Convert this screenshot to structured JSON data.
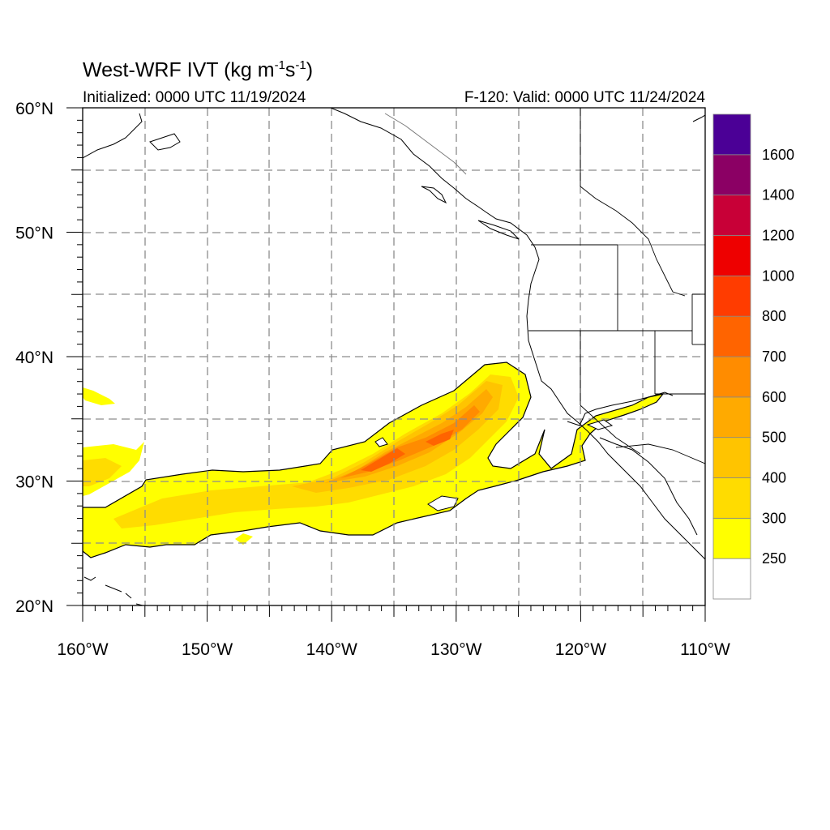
{
  "title": {
    "main": "West-WRF IVT (kg m",
    "exp1": "-1",
    "mid": "s",
    "exp2": "-1",
    "close": ")"
  },
  "subtitle_left": "Initialized: 0000 UTC 11/19/2024",
  "subtitle_right": "F-120: Valid: 0000 UTC 11/24/2024",
  "map": {
    "lon_range": [
      -160,
      -110
    ],
    "lat_range": [
      20,
      60
    ],
    "x_ticks": [
      {
        "value": -160,
        "label": "160°W"
      },
      {
        "value": -150,
        "label": "150°W"
      },
      {
        "value": -140,
        "label": "140°W"
      },
      {
        "value": -130,
        "label": "130°W"
      },
      {
        "value": -120,
        "label": "120°W"
      },
      {
        "value": -110,
        "label": "110°W"
      }
    ],
    "y_ticks": [
      {
        "value": 20,
        "label": "20°N"
      },
      {
        "value": 30,
        "label": "30°N"
      },
      {
        "value": 40,
        "label": "40°N"
      },
      {
        "value": 50,
        "label": "50°N"
      },
      {
        "value": 60,
        "label": "60°N"
      }
    ],
    "grid": "dashed every 5 degrees"
  },
  "colorbar": {
    "levels": [
      "250",
      "300",
      "400",
      "500",
      "600",
      "700",
      "800",
      "1000",
      "1200",
      "1400",
      "1600"
    ],
    "colors": [
      "#ffffff",
      "#ffff00",
      "#ffdc00",
      "#ffc400",
      "#ffaa00",
      "#ff8c00",
      "#ff6400",
      "#ff3c00",
      "#ee0000",
      "#c80037",
      "#8b0064",
      "#4b0096"
    ]
  }
}
